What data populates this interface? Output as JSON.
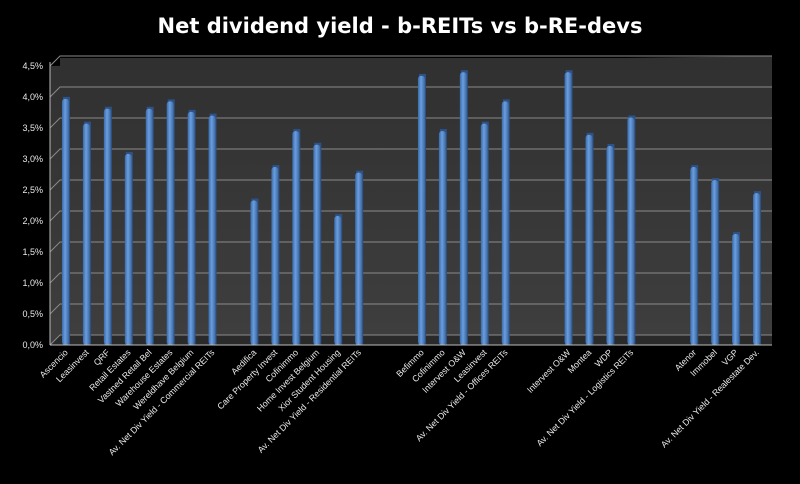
{
  "chart_data": {
    "type": "bar",
    "title": "Net dividend yield - b-REITs vs b-RE-devs",
    "ylim": [
      0,
      4.5
    ],
    "yticks": [
      "0,0%",
      "0,5%",
      "1,0%",
      "1,5%",
      "2,0%",
      "2,5%",
      "3,0%",
      "3,5%",
      "4,0%",
      "4,5%"
    ],
    "grid": true,
    "bar_color": "#4f81bd",
    "categories": [
      "Ascencio",
      "Leasinvest",
      "QRF",
      "Retail Estates",
      "Vastned Retail Bel",
      "Warehouse Estates",
      "Wereldhave Belgium",
      "Av. Net Div Yield - Commercial REITs",
      "",
      "Aedifica",
      "Care Property Invest",
      "Cofinimmo",
      "Home Invest Belgium",
      "Xior Student Housing",
      "Av. Net Div Yield - Residential REITs",
      "",
      "",
      "Befimmo",
      "Cofinimmo",
      "Intervest O&W",
      "Leasinvest",
      "Av. Net Div Yield - Offices REITs",
      "",
      "",
      "Intervest O&W",
      "Montea",
      "WDP",
      "Av. Net Div Yield - Logistics REITs",
      "",
      "",
      "Atenor",
      "Immobel",
      "VGP",
      "Av. Net Div Yield - Realestate Dev."
    ],
    "values": [
      3.97,
      3.57,
      3.81,
      3.08,
      3.81,
      3.93,
      3.76,
      3.7,
      null,
      2.33,
      2.87,
      3.45,
      3.23,
      2.08,
      2.78,
      null,
      null,
      4.34,
      3.45,
      4.4,
      3.57,
      3.93,
      null,
      null,
      4.4,
      3.39,
      3.21,
      3.67,
      null,
      null,
      2.87,
      2.66,
      1.79,
      2.45
    ]
  }
}
